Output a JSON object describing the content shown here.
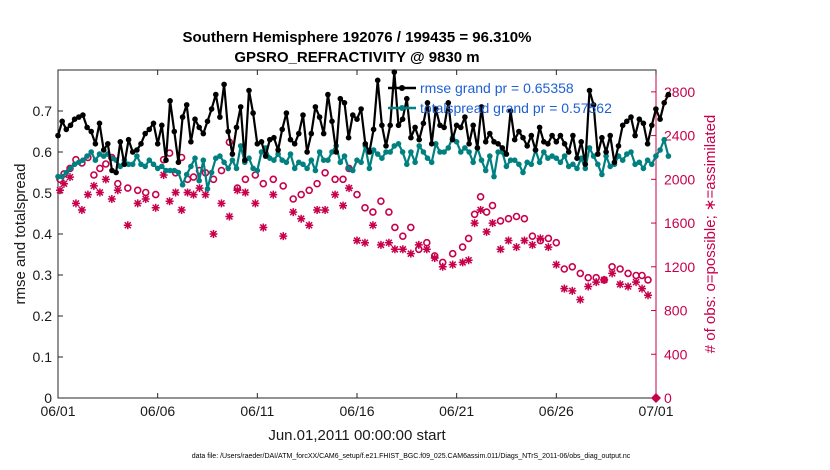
{
  "chart_data": {
    "type": "line",
    "title": "Southern Hemisphere 192076 / 199435 = 96.310%",
    "subtitle": "GPSRO_REFRACTIVITY @ 9830 m",
    "xlabel": "Jun.01,2011 00:00:00 start",
    "ylabel": "rmse and totalspread",
    "ylabel_right": "# of obs: o=possible; ∗=assimilated",
    "footer": "data file: /Users/raeder/DAI/ATM_forcXX/CAM6_setup/f.e21.FHIST_BGC.f09_025.CAM6assim.011/Diags_NTrS_2011-06/obs_diag_output.nc",
    "x_ticks": [
      "06/01",
      "06/06",
      "06/11",
      "06/16",
      "06/21",
      "06/26",
      "07/01"
    ],
    "y_ticks": [
      "0",
      "0.1",
      "0.2",
      "0.3",
      "0.4",
      "0.5",
      "0.6",
      "0.7"
    ],
    "y2_ticks": [
      "0",
      "400",
      "800",
      "1200",
      "1600",
      "2000",
      "2400",
      "2800"
    ],
    "xlim_days": [
      0,
      30
    ],
    "ylim": [
      0,
      0.8
    ],
    "y2lim": [
      0,
      3000
    ],
    "grid": false,
    "legend_position": "top-right",
    "legend": [
      "rmse grand pr = 0.65358",
      "totalspread grand pr = 0.57562"
    ],
    "colors": {
      "rmse": "#000000",
      "spread": "#008080",
      "obs": "#c8004b",
      "legend_text": "#1f5fd6"
    },
    "series": [
      {
        "name": "rmse grand pr = 0.65358",
        "color": "#000000",
        "values": [
          0.64,
          0.675,
          0.655,
          0.665,
          0.68,
          0.685,
          0.69,
          0.66,
          0.65,
          0.62,
          0.67,
          0.605,
          0.62,
          0.555,
          0.55,
          0.625,
          0.57,
          0.63,
          0.6,
          0.605,
          0.62,
          0.645,
          0.655,
          0.67,
          0.62,
          0.665,
          0.58,
          0.725,
          0.65,
          0.575,
          0.685,
          0.715,
          0.625,
          0.68,
          0.66,
          0.645,
          0.675,
          0.705,
          0.74,
          0.685,
          0.765,
          0.65,
          0.595,
          0.66,
          0.71,
          0.58,
          0.75,
          0.695,
          0.62,
          0.625,
          0.59,
          0.63,
          0.635,
          0.605,
          0.655,
          0.695,
          0.63,
          0.62,
          0.645,
          0.69,
          0.6,
          0.645,
          0.71,
          0.685,
          0.645,
          0.74,
          0.675,
          0.6,
          0.73,
          0.72,
          0.635,
          0.69,
          0.68,
          0.705,
          0.62,
          0.6,
          0.655,
          0.775,
          0.665,
          0.615,
          0.665,
          0.795,
          0.665,
          0.68,
          0.73,
          0.635,
          0.66,
          0.63,
          0.67,
          0.72,
          0.62,
          0.705,
          0.665,
          0.66,
          0.72,
          0.63,
          0.665,
          0.66,
          0.685,
          0.62,
          0.665,
          0.61,
          0.71,
          0.625,
          0.645,
          0.625,
          0.62,
          0.61,
          0.595,
          0.7,
          0.63,
          0.65,
          0.635,
          0.615,
          0.64,
          0.605,
          0.66,
          0.625,
          0.62,
          0.64,
          0.625,
          0.64,
          0.62,
          0.6,
          0.64,
          0.585,
          0.625,
          0.57,
          0.75,
          0.715,
          0.595,
          0.635,
          0.6,
          0.64,
          0.575,
          0.615,
          0.665,
          0.675,
          0.685,
          0.64,
          0.68,
          0.67,
          0.62,
          0.665,
          0.705,
          0.68,
          0.72,
          0.74
        ],
        "x_start": 0,
        "x_step": 0.2083
      },
      {
        "name": "totalspread grand pr = 0.57562",
        "color": "#008080",
        "values": [
          0.54,
          0.54,
          0.55,
          0.56,
          0.57,
          0.575,
          0.58,
          0.59,
          0.6,
          0.58,
          0.595,
          0.59,
          0.595,
          0.585,
          0.58,
          0.565,
          0.58,
          0.57,
          0.57,
          0.59,
          0.57,
          0.565,
          0.58,
          0.57,
          0.56,
          0.565,
          0.555,
          0.555,
          0.555,
          0.55,
          0.52,
          0.545,
          0.565,
          0.585,
          0.53,
          0.58,
          0.51,
          0.55,
          0.585,
          0.59,
          0.575,
          0.56,
          0.58,
          0.56,
          0.615,
          0.575,
          0.585,
          0.56,
          0.555,
          0.6,
          0.61,
          0.585,
          0.58,
          0.595,
          0.58,
          0.575,
          0.595,
          0.56,
          0.575,
          0.57,
          0.56,
          0.58,
          0.555,
          0.6,
          0.58,
          0.58,
          0.6,
          0.615,
          0.575,
          0.59,
          0.56,
          0.555,
          0.58,
          0.575,
          0.615,
          0.56,
          0.605,
          0.595,
          0.585,
          0.6,
          0.6,
          0.615,
          0.62,
          0.6,
          0.57,
          0.6,
          0.575,
          0.615,
          0.6,
          0.585,
          0.575,
          0.62,
          0.6,
          0.6,
          0.61,
          0.635,
          0.625,
          0.6,
          0.61,
          0.6,
          0.575,
          0.61,
          0.58,
          0.555,
          0.59,
          0.54,
          0.6,
          0.6,
          0.565,
          0.58,
          0.58,
          0.57,
          0.55,
          0.575,
          0.57,
          0.605,
          0.575,
          0.6,
          0.585,
          0.59,
          0.585,
          0.575,
          0.59,
          0.565,
          0.57,
          0.56,
          0.585,
          0.56,
          0.61,
          0.59,
          0.57,
          0.545,
          0.59,
          0.565,
          0.57,
          0.59,
          0.58,
          0.595,
          0.6,
          0.57,
          0.575,
          0.56,
          0.58,
          0.57,
          0.59,
          0.605,
          0.63,
          0.59
        ],
        "x_start": 0,
        "x_step": 0.2083
      },
      {
        "name": "possible",
        "color": "#c8004b",
        "marker": "o",
        "x": [
          0.1,
          0.3,
          0.6,
          0.9,
          1.2,
          1.5,
          1.8,
          2.1,
          2.4,
          2.7,
          3.0,
          3.5,
          4.0,
          4.4,
          4.9,
          5.3,
          5.6,
          5.9,
          6.2,
          6.5,
          6.8,
          7.1,
          7.4,
          7.8,
          8.2,
          8.6,
          9.0,
          9.4,
          9.9,
          10.3,
          10.8,
          11.3,
          11.8,
          12.2,
          12.6,
          13.0,
          13.4,
          13.9,
          14.3,
          14.6,
          15.0,
          15.4,
          15.8,
          16.2,
          16.6,
          16.9,
          17.3,
          17.7,
          18.1,
          18.5,
          18.9,
          19.3,
          19.8,
          20.3,
          20.6,
          20.9,
          21.2,
          21.5,
          21.8,
          22.2,
          22.6,
          23.0,
          23.4,
          23.8,
          24.2,
          24.6,
          25.0,
          25.4,
          25.8,
          26.2,
          26.6,
          27.0,
          27.4,
          27.8,
          28.2,
          28.6,
          29.0,
          29.3,
          29.6
        ],
        "values": [
          2000,
          2050,
          2100,
          2180,
          2150,
          2200,
          2040,
          2100,
          2140,
          2200,
          1960,
          1920,
          1900,
          1880,
          1860,
          2180,
          2240,
          2060,
          2200,
          2000,
          2020,
          2080,
          2060,
          2000,
          2080,
          2340,
          1920,
          2000,
          2040,
          1960,
          2000,
          1940,
          1820,
          1860,
          1900,
          1960,
          2060,
          2000,
          2000,
          2100,
          1860,
          1740,
          1700,
          1800,
          1700,
          1560,
          1480,
          1560,
          1360,
          1420,
          1300,
          1240,
          1320,
          1380,
          1460,
          1680,
          1840,
          1700,
          1760,
          1620,
          1640,
          1660,
          1640,
          1480,
          1440,
          1460,
          1420,
          1180,
          1200,
          1140,
          1100,
          1100,
          1080,
          1200,
          1180,
          1140,
          1120,
          1120,
          1080
        ]
      },
      {
        "name": "assimilated",
        "color": "#c8004b",
        "marker": "*",
        "x": [
          0.1,
          0.3,
          0.6,
          0.9,
          1.2,
          1.5,
          1.8,
          2.1,
          2.4,
          2.7,
          3.0,
          3.5,
          4.0,
          4.4,
          4.9,
          5.3,
          5.6,
          5.9,
          6.2,
          6.5,
          6.8,
          7.1,
          7.4,
          7.8,
          8.2,
          8.6,
          9.0,
          9.4,
          9.9,
          10.3,
          10.8,
          11.3,
          11.8,
          12.2,
          12.6,
          13.0,
          13.4,
          13.9,
          14.3,
          14.6,
          15.0,
          15.4,
          15.8,
          16.2,
          16.6,
          16.9,
          17.3,
          17.7,
          18.1,
          18.5,
          18.9,
          19.3,
          19.8,
          20.3,
          20.6,
          20.9,
          21.2,
          21.5,
          21.8,
          22.2,
          22.6,
          23.0,
          23.4,
          23.8,
          24.2,
          24.6,
          25.0,
          25.4,
          25.8,
          26.2,
          26.6,
          27.0,
          27.4,
          27.8,
          28.2,
          28.6,
          29.0,
          29.3,
          29.6
        ],
        "values": [
          1900,
          1960,
          2020,
          1780,
          1720,
          1860,
          1940,
          1880,
          2000,
          1820,
          1900,
          1580,
          1780,
          1820,
          1740,
          2040,
          1800,
          1880,
          1720,
          1880,
          1860,
          1920,
          1860,
          1500,
          1780,
          1660,
          1900,
          1880,
          1780,
          1560,
          1860,
          1480,
          1700,
          1640,
          1580,
          1720,
          1720,
          1860,
          1760,
          1920,
          1440,
          1420,
          1580,
          1400,
          1420,
          1360,
          1360,
          1320,
          1400,
          1360,
          1280,
          1200,
          1220,
          1240,
          1260,
          1600,
          1720,
          1520,
          1600,
          1360,
          1440,
          1380,
          1440,
          1400,
          1460,
          1380,
          1220,
          1000,
          980,
          900,
          1020,
          1060,
          1080,
          1140,
          1040,
          1020,
          1060,
          1000,
          940
        ]
      }
    ]
  }
}
